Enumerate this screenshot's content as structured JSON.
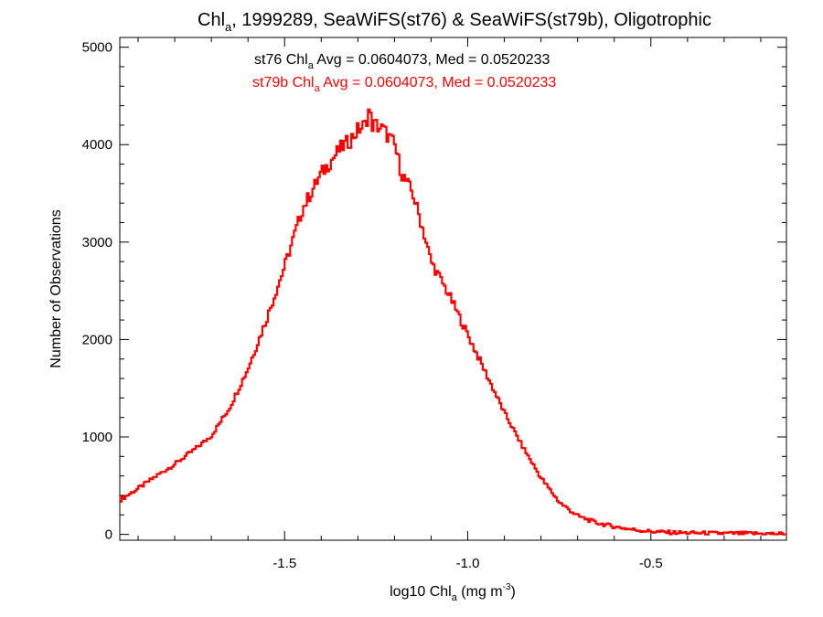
{
  "title": {
    "main": "Chl",
    "sub": "a",
    "rest": ", 1999289, SeaWiFS(st76) & SeaWiFS(st79b), Oligotrophic"
  },
  "annotations": [
    {
      "pre": "st76 Chl",
      "sub": "a",
      "post": " Avg = 0.0604073, Med = 0.0520233",
      "color": "#000000"
    },
    {
      "pre": "st79b Chl",
      "sub": "a",
      "post": " Avg = 0.0604073, Med = 0.0520233",
      "color": "#ff0000"
    }
  ],
  "axes": {
    "xlabel": {
      "pre": "log10 Chl",
      "sub": "a",
      "mid": " (mg m",
      "sup": "-3",
      "post": ")"
    },
    "ylabel": "Number of Observations"
  },
  "chart_data": {
    "type": "line",
    "step": true,
    "xlim": [
      -1.95,
      -0.13
    ],
    "ylim": [
      -60,
      5100
    ],
    "xticks": [
      {
        "v": -1.5,
        "label": "-1.5"
      },
      {
        "v": -1.0,
        "label": "-1.0"
      },
      {
        "v": -0.5,
        "label": "-0.5"
      }
    ],
    "yticks": [
      {
        "v": 0,
        "label": "0"
      },
      {
        "v": 1000,
        "label": "1000"
      },
      {
        "v": 2000,
        "label": "2000"
      },
      {
        "v": 3000,
        "label": "3000"
      },
      {
        "v": 4000,
        "label": "4000"
      },
      {
        "v": 5000,
        "label": "5000"
      }
    ],
    "series": [
      {
        "name": "st79b",
        "color": "#ff0000",
        "x": [
          -1.95,
          -1.9,
          -1.85,
          -1.8,
          -1.75,
          -1.7,
          -1.65,
          -1.6,
          -1.55,
          -1.5,
          -1.45,
          -1.4,
          -1.35,
          -1.32,
          -1.3,
          -1.28,
          -1.27,
          -1.26,
          -1.25,
          -1.23,
          -1.2,
          -1.18,
          -1.15,
          -1.12,
          -1.1,
          -1.05,
          -1.0,
          -0.95,
          -0.9,
          -0.85,
          -0.8,
          -0.75,
          -0.7,
          -0.65,
          -0.6,
          -0.55,
          -0.5,
          -0.45,
          -0.4,
          -0.3,
          -0.2,
          -0.13
        ],
        "values": [
          350,
          470,
          600,
          720,
          860,
          1010,
          1300,
          1700,
          2200,
          2750,
          3350,
          3700,
          3950,
          4050,
          4150,
          4200,
          4350,
          4200,
          4200,
          4150,
          4000,
          3700,
          3500,
          3100,
          2800,
          2450,
          2050,
          1650,
          1250,
          900,
          580,
          330,
          190,
          120,
          80,
          50,
          30,
          20,
          15,
          10,
          8,
          5
        ]
      }
    ]
  }
}
